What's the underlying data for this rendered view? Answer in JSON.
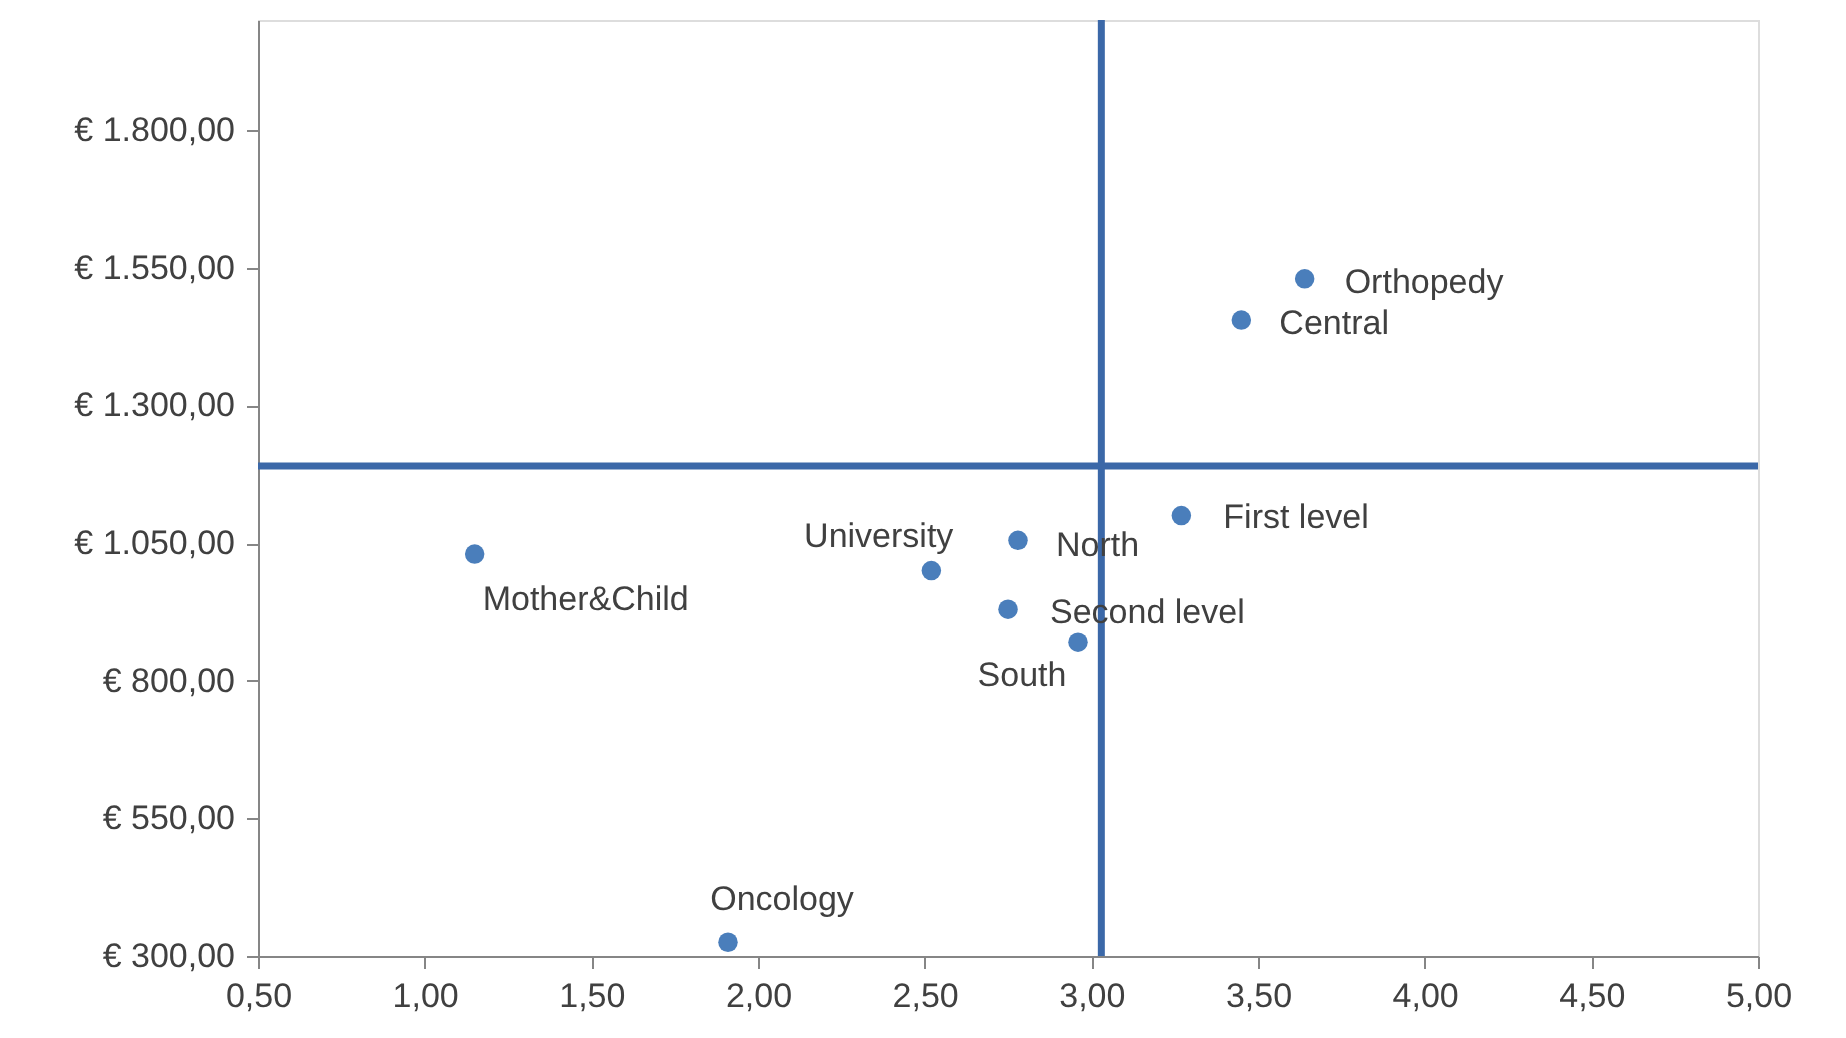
{
  "chart_data": {
    "type": "scatter",
    "x": [
      3.64,
      3.45,
      3.27,
      2.78,
      2.52,
      2.75,
      2.96,
      1.15,
      1.91
    ],
    "values": [
      1530,
      1455,
      1100,
      1055,
      1000,
      930,
      870,
      1030,
      325
    ],
    "color": "#4a7ebb",
    "marker": "circle",
    "xlim": [
      0.5,
      5.0
    ],
    "ylim": [
      300,
      2000
    ],
    "xticks": [
      {
        "value": 0.5,
        "label": "0,50"
      },
      {
        "value": 1.0,
        "label": "1,00"
      },
      {
        "value": 1.5,
        "label": "1,50"
      },
      {
        "value": 2.0,
        "label": "2,00"
      },
      {
        "value": 2.5,
        "label": "2,50"
      },
      {
        "value": 3.0,
        "label": "3,00"
      },
      {
        "value": 3.5,
        "label": "3,50"
      },
      {
        "value": 4.0,
        "label": "4,00"
      },
      {
        "value": 4.5,
        "label": "4,50"
      },
      {
        "value": 5.0,
        "label": "5,00"
      }
    ],
    "yticks": [
      {
        "value": 300,
        "label": "€ 300,00"
      },
      {
        "value": 550,
        "label": "€ 550,00"
      },
      {
        "value": 800,
        "label": "€ 800,00"
      },
      {
        "value": 1050,
        "label": "€ 1.050,00"
      },
      {
        "value": 1300,
        "label": "€ 1.300,00"
      },
      {
        "value": 1550,
        "label": "€ 1.550,00"
      },
      {
        "value": 1800,
        "label": "€ 1.800,00"
      }
    ],
    "grid": false,
    "ref_lines": [
      {
        "axis": "x",
        "value": 3.03,
        "color": "#3b68a8"
      },
      {
        "axis": "y",
        "value": 1190,
        "color": "#3b68a8"
      }
    ],
    "annotations": [
      {
        "text": "Orthopedy",
        "x": 3.64,
        "y": 1530
      },
      {
        "text": "Central",
        "x": 3.45,
        "y": 1455
      },
      {
        "text": "First level",
        "x": 3.27,
        "y": 1100
      },
      {
        "text": "North",
        "x": 2.78,
        "y": 1055
      },
      {
        "text": "University",
        "x": 2.52,
        "y": 1000
      },
      {
        "text": "Second level",
        "x": 2.75,
        "y": 930
      },
      {
        "text": "South",
        "x": 2.96,
        "y": 870
      },
      {
        "text": "Mother&Child",
        "x": 1.15,
        "y": 1030
      },
      {
        "text": "Oncology",
        "x": 1.91,
        "y": 325
      }
    ]
  }
}
